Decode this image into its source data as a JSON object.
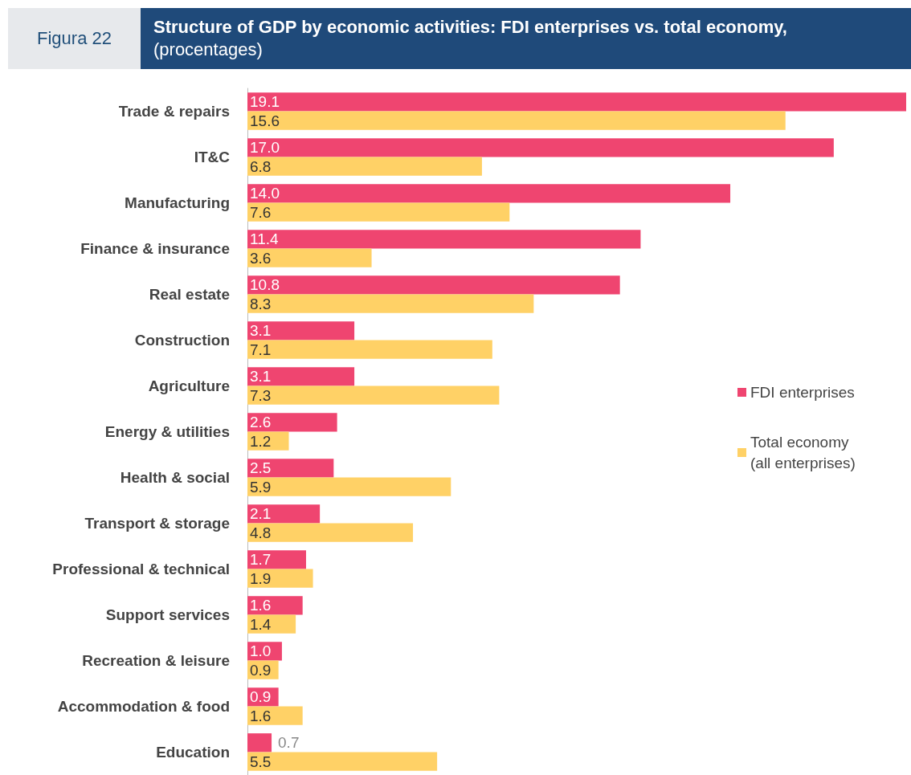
{
  "chart_data": {
    "type": "bar",
    "orientation": "horizontal",
    "title": "Structure of GDP by economic activities: FDI enterprises vs. total economy,",
    "subtitle": "(procentages)",
    "annotations": [
      "Figura 22"
    ],
    "categories": [
      "Trade & repairs",
      "IT&C",
      "Manufacturing",
      "Finance & insurance",
      "Real estate",
      "Construction",
      "Agriculture",
      "Energy & utilities",
      "Health & social",
      "Transport & storage",
      "Professional & technical",
      "Support services",
      "Recreation & leisure",
      "Accommodation & food",
      "Education"
    ],
    "series": [
      {
        "name": "FDI enterprises",
        "color": "#ef4570",
        "values": [
          19.1,
          17.0,
          14.0,
          11.4,
          10.8,
          3.1,
          3.1,
          2.6,
          2.5,
          2.1,
          1.7,
          1.6,
          1.0,
          0.9,
          0.7
        ],
        "value_labels": [
          "19.1",
          "17.0",
          "14.0",
          "11.4",
          "10.8",
          "3.1",
          "3.1",
          "2.6",
          "2.5",
          "2.1",
          "1.7",
          "1.6",
          "1.0",
          "0.9",
          "0.7"
        ]
      },
      {
        "name": "Total economy (all enterprises)",
        "color": "#ffd166",
        "values": [
          15.6,
          6.8,
          7.6,
          3.6,
          8.3,
          7.1,
          7.3,
          1.2,
          5.9,
          4.8,
          1.9,
          1.4,
          0.9,
          1.6,
          5.5
        ],
        "value_labels": [
          "15.6",
          "6.8",
          "7.6",
          "3.6",
          "8.3",
          "7.1",
          "7.3",
          "1.2",
          "5.9",
          "4.8",
          "1.9",
          "1.4",
          "0.9",
          "1.6",
          "5.5"
        ]
      }
    ],
    "legend": "right"
  }
}
